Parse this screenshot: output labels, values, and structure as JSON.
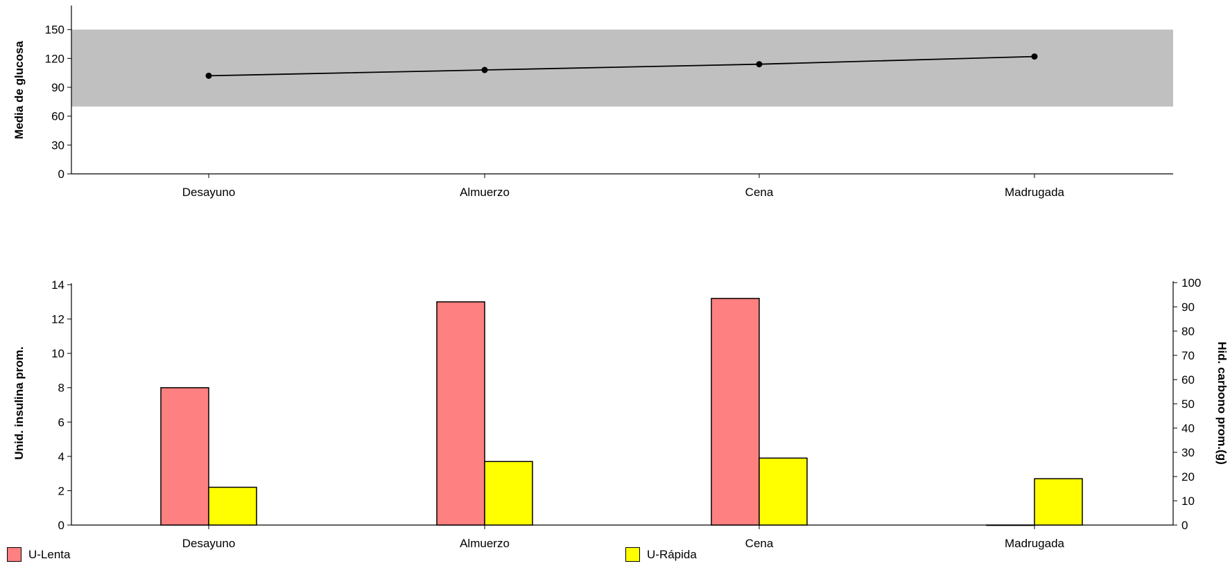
{
  "chart_data": [
    {
      "type": "line",
      "categories": [
        "Desayuno",
        "Almuerzo",
        "Cena",
        "Madrugada"
      ],
      "series": [
        {
          "values": [
            102,
            108,
            114,
            122
          ]
        }
      ],
      "ylabel": "Media de glucosa",
      "ylim": [
        0,
        175
      ],
      "yticks": [
        "0",
        "30",
        "60",
        "90",
        "120",
        "150"
      ],
      "target_range": [
        70,
        150
      ],
      "colors": {
        "line": "#000000",
        "band": "#c0c0c0"
      }
    },
    {
      "type": "bar",
      "categories": [
        "Desayuno",
        "Almuerzo",
        "Cena",
        "Madrugada"
      ],
      "series": [
        {
          "name": "U-Lenta",
          "values": [
            8.0,
            13.0,
            13.2,
            0
          ],
          "color": "#ff8080"
        },
        {
          "name": "U-Rápida",
          "values": [
            2.2,
            3.7,
            3.9,
            2.7
          ],
          "color": "#ffff00"
        }
      ],
      "ylabel": "Unid. insulina prom.",
      "ylim": [
        0,
        14
      ],
      "yticks": [
        "0",
        "2",
        "4",
        "6",
        "8",
        "10",
        "12",
        "14"
      ],
      "y2label": "Hid. carbono prom.(g)",
      "y2lim": [
        0,
        100
      ],
      "y2ticks": [
        "0",
        "10",
        "20",
        "30",
        "40",
        "50",
        "60",
        "70",
        "80",
        "90",
        "100"
      ]
    }
  ]
}
